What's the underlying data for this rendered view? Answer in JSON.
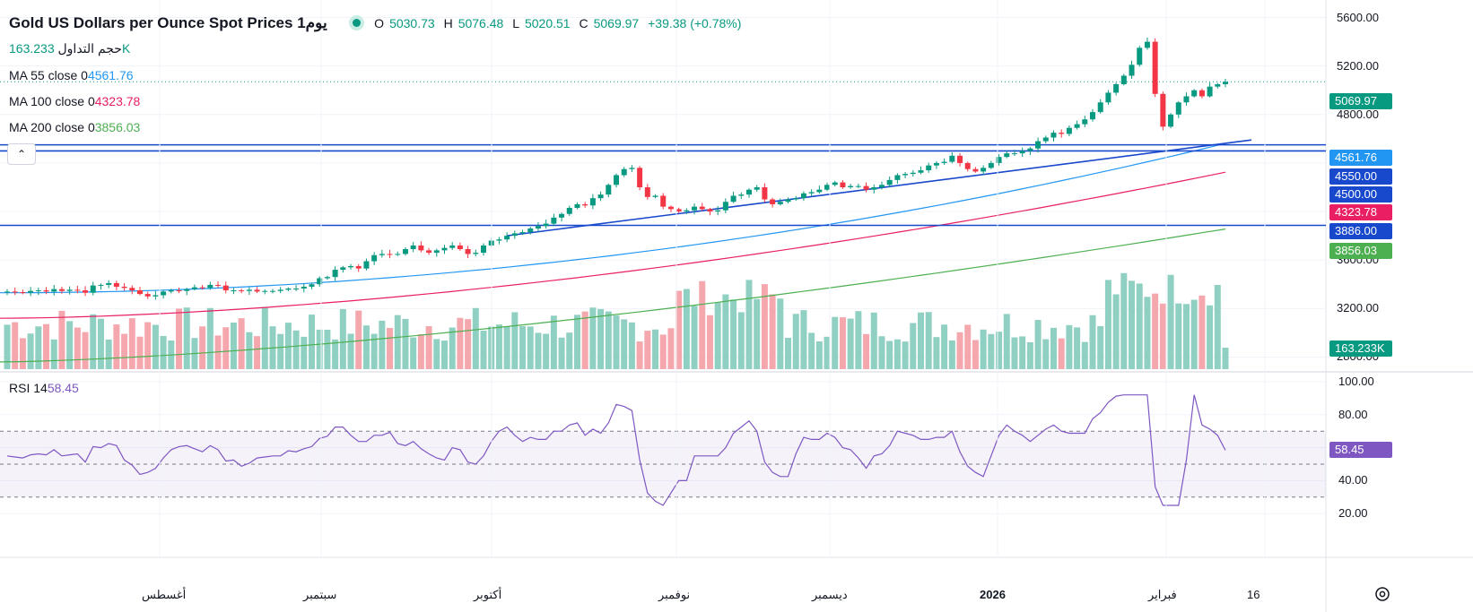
{
  "header": {
    "title": "Gold US Dollars per Ounce Spot Prices 1يوم",
    "ohlc": {
      "o_label": "O",
      "o": "5030.73",
      "h_label": "H",
      "h": "5076.48",
      "l_label": "L",
      "l": "5020.51",
      "c_label": "C",
      "c": "5069.97",
      "change": "+39.38 (+0.78%)"
    }
  },
  "indicators": {
    "volume": {
      "label": "حجم التداول",
      "value": "163.233K"
    },
    "ma55": {
      "label": "MA  55 close 0",
      "value": "4561.76",
      "color": "#2196f3"
    },
    "ma100": {
      "label": "MA  100 close 0",
      "value": "4323.78",
      "color": "#e91e63"
    },
    "ma200": {
      "label": "MA  200 close 0",
      "value": "3856.03",
      "color": "#4caf50"
    },
    "rsi": {
      "label": "RSI  14",
      "value": "58.45",
      "color": "#7e57c2"
    }
  },
  "collapse_icon": "chevron-up-icon",
  "price_axis": {
    "ticks": [
      "5600.00",
      "5200.00",
      "4800.00",
      "3600.00",
      "3200.00",
      "2800.00"
    ],
    "badges": [
      {
        "text": "5069.97",
        "bg": "#089981"
      },
      {
        "text": "4561.76",
        "bg": "#2196f3"
      },
      {
        "text": "4550.00",
        "bg": "#1848cc"
      },
      {
        "text": "4500.00",
        "bg": "#1848cc"
      },
      {
        "text": "4323.78",
        "bg": "#e91e63"
      },
      {
        "text": "3886.00",
        "bg": "#1848cc"
      },
      {
        "text": "3856.03",
        "bg": "#4caf50"
      },
      {
        "text": "163.233K",
        "bg": "#089981"
      },
      {
        "text": "58.45",
        "bg": "#7e57c2"
      }
    ]
  },
  "rsi_axis": {
    "ticks": [
      "100.00",
      "80.00",
      "60.00",
      "40.00",
      "20.00"
    ]
  },
  "time_axis": {
    "labels": [
      "أغسطس",
      "سبتمبر",
      "أكتوبر",
      "نوفمبر",
      "ديسمبر",
      "2026",
      "فبراير",
      "16"
    ]
  },
  "chart_data": {
    "type": "candlestick",
    "title": "Gold US Dollars per Ounce Spot Prices",
    "ylim_price": [
      2700,
      5700
    ],
    "horizontal_levels": [
      4550,
      4500,
      3886
    ],
    "last_close": 5069.97,
    "closes": [
      3340,
      3335,
      3330,
      3345,
      3350,
      3340,
      3360,
      3345,
      3355,
      3350,
      3330,
      3390,
      3395,
      3410,
      3380,
      3370,
      3350,
      3320,
      3300,
      3310,
      3340,
      3350,
      3345,
      3360,
      3375,
      3370,
      3395,
      3390,
      3350,
      3350,
      3345,
      3355,
      3340,
      3345,
      3345,
      3355,
      3365,
      3365,
      3380,
      3400,
      3450,
      3460,
      3520,
      3540,
      3550,
      3530,
      3590,
      3640,
      3650,
      3645,
      3650,
      3690,
      3720,
      3680,
      3660,
      3680,
      3700,
      3720,
      3690,
      3650,
      3660,
      3720,
      3760,
      3770,
      3800,
      3820,
      3830,
      3860,
      3880,
      3900,
      3950,
      3980,
      4030,
      4060,
      4050,
      4110,
      4140,
      4220,
      4300,
      4350,
      4360,
      4200,
      4120,
      4130,
      4040,
      4020,
      4000,
      4010,
      4040,
      4020,
      4000,
      4010,
      4080,
      4130,
      4140,
      4180,
      4200,
      4100,
      4060,
      4080,
      4100,
      4110,
      4150,
      4160,
      4180,
      4220,
      4240,
      4200,
      4210,
      4210,
      4180,
      4200,
      4220,
      4260,
      4300,
      4310,
      4320,
      4340,
      4380,
      4400,
      4410,
      4460,
      4400,
      4350,
      4330,
      4360,
      4400,
      4450,
      4480,
      4480,
      4500,
      4520,
      4580,
      4610,
      4650,
      4640,
      4690,
      4720,
      4760,
      4820,
      4900,
      4980,
      5050,
      5120,
      5210,
      5350,
      5400,
      4970,
      4700,
      4800,
      4900,
      4950,
      5000,
      4950,
      5030,
      5050,
      5069.97
    ],
    "ma55": {
      "start": 3330,
      "end": 4561.76
    },
    "ma100": {
      "start": 3120,
      "end": 4323.78
    },
    "ma200": {
      "start": 2760,
      "end": 3856.03
    },
    "trendlines": [
      {
        "from": [
          3800,
          "Oct"
        ],
        "to": [
          4700,
          "Feb"
        ]
      }
    ],
    "rsi": {
      "ylim": [
        0,
        100
      ],
      "bands": [
        70,
        30
      ],
      "last": 58.45
    }
  }
}
